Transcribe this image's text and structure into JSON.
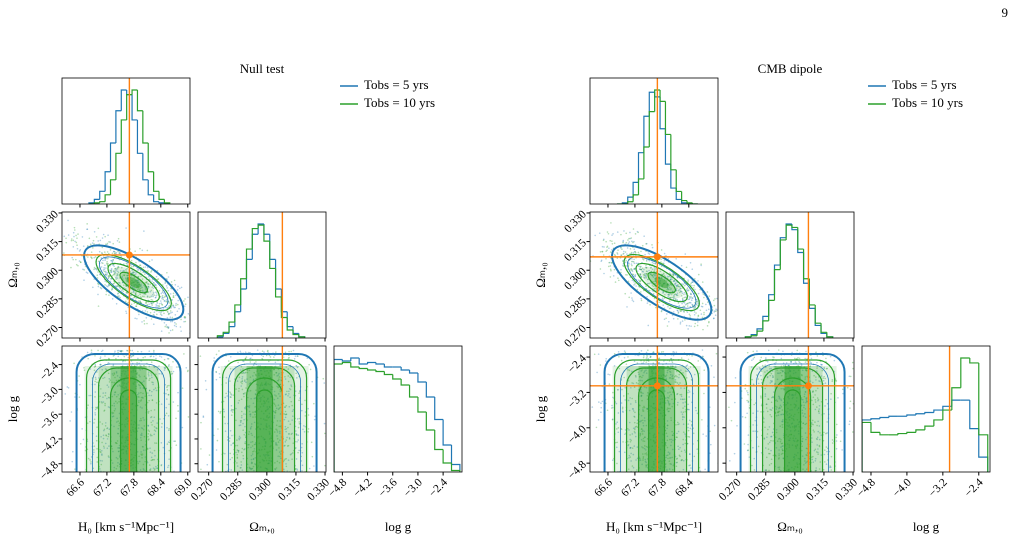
{
  "page_number": "9",
  "figures": [
    {
      "title": "Null test",
      "series": [
        {
          "name": "Tobs = 5 yrs",
          "color": "#1f77b4"
        },
        {
          "name": "Tobs = 10 yrs",
          "color": "#2ca02c"
        }
      ],
      "truth_color": "#ff7f0e",
      "params": [
        {
          "label": "H₀ [km s⁻¹Mpc⁻¹]",
          "lim": [
            66.2,
            69.05
          ],
          "ticks": [
            66.6,
            67.2,
            67.8,
            68.4,
            {
              "value": 69,
              "label": "69.0"
            }
          ],
          "truth": 67.7,
          "hist": {
            "bins": [
              66.8,
              66.92,
              67.04,
              67.16,
              67.28,
              67.4,
              67.52,
              67.64,
              67.76,
              67.88,
              68,
              68.12,
              68.24,
              68.36,
              68.48,
              68.6
            ],
            "values": [
              [
                1,
                4,
                11,
                28,
                53,
                81,
                99,
                95,
                73,
                44,
                21,
                8,
                2,
                1,
                0
              ],
              [
                0,
                1,
                2,
                8,
                21,
                44,
                73,
                95,
                99,
                81,
                53,
                28,
                11,
                4,
                1
              ]
            ]
          }
        },
        {
          "label": "Ωₘ,₀",
          "lim": [
            0.2645,
            0.3305
          ],
          "ticks": [
            {
              "value": 0.27,
              "label": "0.270"
            },
            0.285,
            {
              "value": 0.3,
              "label": "0.300"
            },
            0.315,
            {
              "value": 0.33,
              "label": "0.330"
            }
          ],
          "truth": 0.308,
          "hist": {
            "bins": [
              0.2745,
              0.2775,
              0.2805,
              0.2835,
              0.2865,
              0.2895,
              0.2925,
              0.2955,
              0.2985,
              0.3015,
              0.3045,
              0.3075,
              0.3105,
              0.3135,
              0.3165,
              0.3195
            ],
            "values": [
              [
                1,
                4,
                10,
                23,
                43,
                69,
                91,
                100,
                91,
                69,
                43,
                23,
                10,
                4,
                1
              ],
              [
                2,
                5,
                14,
                29,
                52,
                78,
                96,
                99,
                85,
                61,
                36,
                18,
                7,
                3,
                1
              ]
            ]
          }
        },
        {
          "label": "log g",
          "lim": [
            -5.0,
            -1.95
          ],
          "ticks": [
            {
              "value": -4.8,
              "label": "−4.8"
            },
            {
              "value": -4.2,
              "label": "−4.2"
            },
            {
              "value": -3.6,
              "label": "−3.6"
            },
            {
              "value": -3.0,
              "label": "−3.0"
            },
            {
              "value": -2.4,
              "label": "−2.4"
            }
          ],
          "hist": {
            "bins": [
              -5,
              -4.8,
              -4.6,
              -4.4,
              -4.2,
              -4,
              -3.8,
              -3.6,
              -3.4,
              -3.2,
              -3,
              -2.8,
              -2.6,
              -2.4,
              -2.2,
              -2
            ],
            "values": [
              [
                75,
                74,
                76,
                72,
                73,
                72,
                70,
                70,
                68,
                66,
                60,
                50,
                35,
                18,
                5
              ],
              [
                72,
                73,
                70,
                69,
                68,
                67,
                65,
                62,
                58,
                50,
                40,
                28,
                15,
                6,
                1
              ]
            ]
          }
        }
      ]
    },
    {
      "title": "CMB dipole",
      "series": [
        {
          "name": "Tobs = 5 yrs",
          "color": "#1f77b4"
        },
        {
          "name": "Tobs = 10 yrs",
          "color": "#2ca02c"
        }
      ],
      "truth_color": "#ff7f0e",
      "params": [
        {
          "label": "H₀ [km s⁻¹Mpc⁻¹]",
          "lim": [
            66.2,
            69.05
          ],
          "ticks": [
            66.6,
            67.2,
            67.8,
            68.4
          ],
          "truth": 67.7,
          "hist": {
            "bins": [
              66.8,
              66.92,
              67.04,
              67.16,
              67.28,
              67.4,
              67.52,
              67.64,
              67.76,
              67.88,
              68,
              68.12,
              68.24,
              68.36,
              68.48,
              68.6
            ],
            "values": [
              [
                0,
                1,
                6,
                19,
                45,
                77,
                98,
                94,
                66,
                35,
                14,
                4,
                1,
                0,
                0
              ],
              [
                0,
                0,
                2,
                8,
                22,
                50,
                81,
                100,
                90,
                61,
                30,
                11,
                3,
                1,
                0
              ]
            ]
          }
        },
        {
          "label": "Ωₘ,₀",
          "lim": [
            0.2645,
            0.3305
          ],
          "ticks": [
            {
              "value": 0.27,
              "label": "0.270"
            },
            0.285,
            {
              "value": 0.3,
              "label": "0.300"
            },
            0.315,
            {
              "value": 0.33,
              "label": "0.330"
            }
          ],
          "truth": 0.307,
          "hist": {
            "bins": [
              0.2745,
              0.2775,
              0.2805,
              0.2835,
              0.2865,
              0.2895,
              0.2925,
              0.2955,
              0.2985,
              0.3015,
              0.3045,
              0.3075,
              0.3105,
              0.3135,
              0.3165,
              0.3195
            ],
            "values": [
              [
                1,
                3,
                8,
                19,
                38,
                64,
                88,
                100,
                95,
                75,
                48,
                26,
                11,
                4,
                1
              ],
              [
                1,
                2,
                6,
                15,
                33,
                60,
                86,
                99,
                97,
                78,
                52,
                29,
                13,
                5,
                1
              ]
            ]
          }
        },
        {
          "label": "log g",
          "lim": [
            -5.0,
            -2.15
          ],
          "ticks": [
            {
              "value": -4.8,
              "label": "−4.8"
            },
            {
              "value": -4.0,
              "label": "−4.0"
            },
            {
              "value": -3.2,
              "label": "−3.2"
            },
            {
              "value": -2.4,
              "label": "−2.4"
            }
          ],
          "truth": -3.05,
          "hist": {
            "bins": [
              -5,
              -4.8,
              -4.6,
              -4.4,
              -4.2,
              -4,
              -3.8,
              -3.6,
              -3.4,
              -3.2,
              -3,
              -2.8,
              -2.6,
              -2.4,
              -2.2
            ],
            "values": [
              [
                42,
                43,
                44,
                45,
                45,
                46,
                47,
                48,
                50,
                53,
                58,
                58,
                35,
                12
              ],
              [
                40,
                32,
                30,
                30,
                31,
                32,
                34,
                37,
                42,
                50,
                68,
                92,
                88,
                30
              ]
            ]
          }
        }
      ]
    }
  ]
}
